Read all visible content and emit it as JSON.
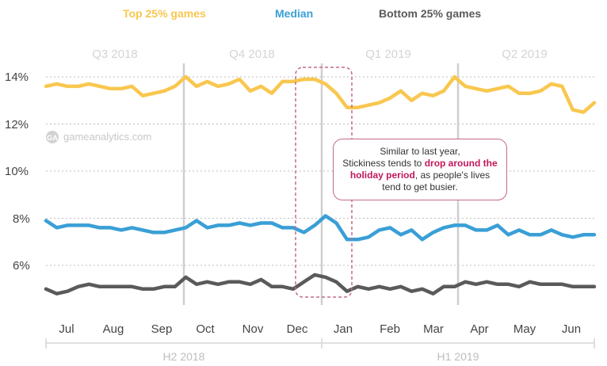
{
  "chart_data": {
    "type": "line",
    "legend": [
      {
        "name": "Top 25% games",
        "color": "#f9c74f"
      },
      {
        "name": "Median",
        "color": "#3a9fd6"
      },
      {
        "name": "Bottom 25% games",
        "color": "#5a5a5a"
      }
    ],
    "quarters": [
      "Q3 2018",
      "Q4 2018",
      "Q1 2019",
      "Q2 2019"
    ],
    "halves": [
      "H2 2018",
      "H1 2019"
    ],
    "months": [
      "Jul",
      "Aug",
      "Sep",
      "Oct",
      "Nov",
      "Dec",
      "Jan",
      "Feb",
      "Mar",
      "Apr",
      "May",
      "Jun"
    ],
    "y_ticks": [
      "14%",
      "12%",
      "10%",
      "8%",
      "6%"
    ],
    "ylim": [
      4.5,
      15
    ],
    "watermark": "gameanalytics.com",
    "annotation": {
      "line1": "Similar to last year,",
      "pre": "Stickiness tends to ",
      "highlight": "drop around the holiday period",
      "post": ", as people's lives tend to get busier."
    },
    "weeks": 52,
    "series": [
      {
        "name": "Top 25% games",
        "color": "#f9c74f",
        "values": [
          13.6,
          13.7,
          13.6,
          13.6,
          13.7,
          13.6,
          13.5,
          13.5,
          13.6,
          13.2,
          13.3,
          13.4,
          13.6,
          14.0,
          13.6,
          13.8,
          13.6,
          13.7,
          13.9,
          13.4,
          13.6,
          13.3,
          13.8,
          13.8,
          13.9,
          13.9,
          13.7,
          13.3,
          12.7,
          12.7,
          12.8,
          12.9,
          13.1,
          13.4,
          13.0,
          13.3,
          13.2,
          13.4,
          14.0,
          13.6,
          13.5,
          13.4,
          13.5,
          13.6,
          13.3,
          13.3,
          13.4,
          13.7,
          13.6,
          12.6,
          12.5,
          12.9
        ]
      },
      {
        "name": "Median",
        "color": "#3a9fd6",
        "values": [
          7.9,
          7.6,
          7.7,
          7.7,
          7.7,
          7.6,
          7.6,
          7.5,
          7.6,
          7.5,
          7.4,
          7.4,
          7.5,
          7.6,
          7.9,
          7.6,
          7.7,
          7.7,
          7.8,
          7.7,
          7.8,
          7.8,
          7.6,
          7.6,
          7.4,
          7.7,
          8.1,
          7.8,
          7.1,
          7.1,
          7.2,
          7.5,
          7.6,
          7.3,
          7.5,
          7.1,
          7.4,
          7.6,
          7.7,
          7.7,
          7.5,
          7.5,
          7.7,
          7.3,
          7.5,
          7.3,
          7.3,
          7.5,
          7.3,
          7.2,
          7.3,
          7.3
        ]
      },
      {
        "name": "Bottom 25% games",
        "color": "#5a5a5a",
        "values": [
          5.0,
          4.8,
          4.9,
          5.1,
          5.2,
          5.1,
          5.1,
          5.1,
          5.1,
          5.0,
          5.0,
          5.1,
          5.1,
          5.5,
          5.2,
          5.3,
          5.2,
          5.3,
          5.3,
          5.2,
          5.4,
          5.1,
          5.1,
          5.0,
          5.3,
          5.6,
          5.5,
          5.3,
          4.9,
          5.1,
          5.0,
          5.1,
          5.0,
          5.1,
          4.9,
          5.0,
          4.8,
          5.1,
          5.1,
          5.3,
          5.2,
          5.3,
          5.2,
          5.2,
          5.1,
          5.3,
          5.2,
          5.2,
          5.2,
          5.1,
          5.1,
          5.1
        ]
      }
    ]
  }
}
